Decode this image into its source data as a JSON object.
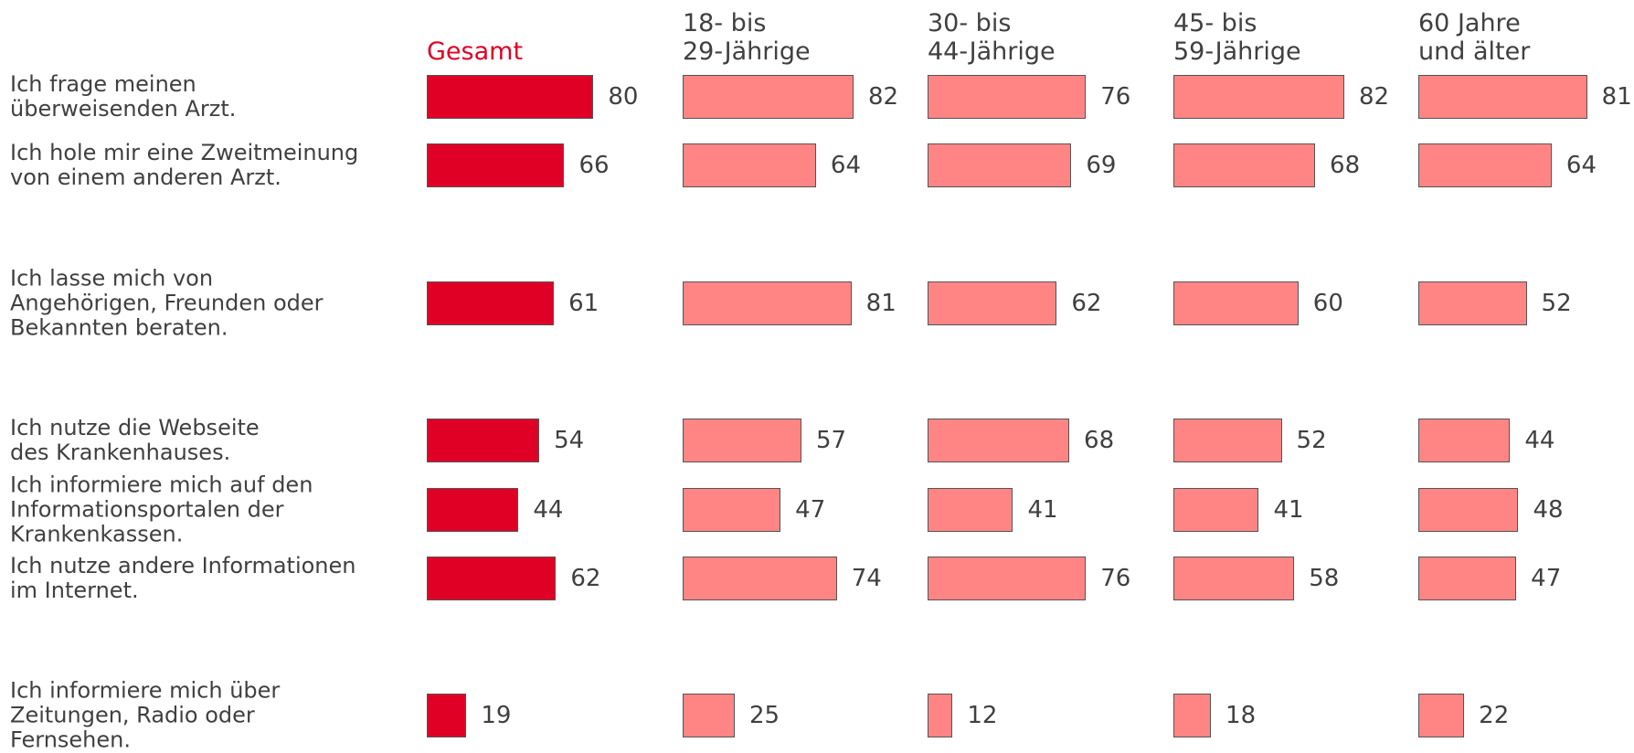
{
  "chart_data": {
    "type": "bar",
    "categories": [
      "Ich frage meinen\nüberweisenden  Arzt.",
      "Ich hole mir eine Zweitmeinung\nvon einem anderen Arzt.",
      "Ich lasse mich von\nAngehörigen, Freunden oder\nBekannten beraten.",
      "Ich nutze die Webseite\ndes Krankenhauses.",
      "Ich informiere mich auf den\nInformationsportalen der\nKrankenkassen.",
      "Ich nutze andere Informationen\nim Internet.",
      "Ich informiere mich über\nZeitungen, Radio oder\nFernsehen."
    ],
    "series": [
      {
        "name": "Gesamt",
        "color": "#e00025",
        "values": [
          80,
          66,
          61,
          54,
          44,
          62,
          19
        ]
      },
      {
        "name": "18- bis\n29-Jährige",
        "color": "#ff8585",
        "values": [
          82,
          64,
          81,
          57,
          47,
          74,
          25
        ]
      },
      {
        "name": "30- bis\n44-Jährige",
        "color": "#ff8585",
        "values": [
          76,
          69,
          62,
          68,
          41,
          76,
          12
        ]
      },
      {
        "name": "45- bis\n59-Jährige",
        "color": "#ff8585",
        "values": [
          82,
          68,
          60,
          52,
          41,
          58,
          18
        ]
      },
      {
        "name": "60 Jahre\nund älter",
        "color": "#ff8585",
        "values": [
          81,
          64,
          52,
          44,
          48,
          47,
          22
        ]
      }
    ]
  }
}
